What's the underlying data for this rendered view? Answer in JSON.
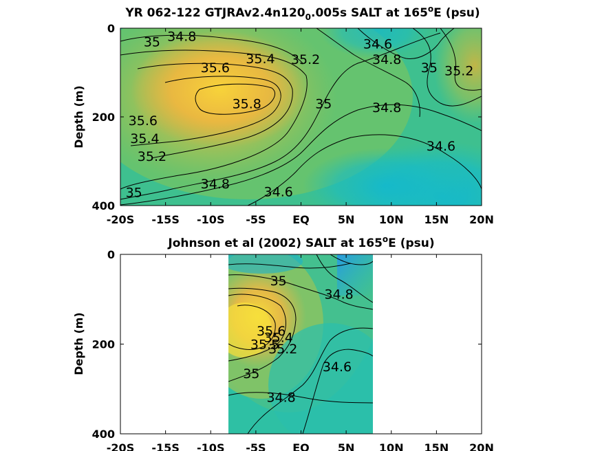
{
  "chart_data": [
    {
      "type": "heatmap",
      "title_pre": "YR 062-122 GTJRAv2.4n120",
      "title_sub": "0",
      "title_post": ".005s SALT at 165",
      "title_sup": "o",
      "title_end": "E (psu)",
      "ylabel": "Depth (m)",
      "xlim": [
        -20,
        20
      ],
      "ylim": [
        0,
        400
      ],
      "x_ticks": [
        -20,
        -15,
        -10,
        -5,
        0,
        5,
        10,
        15,
        20
      ],
      "x_tick_labels": [
        "-20S",
        "-15S",
        "-10S",
        "-5S",
        "EQ",
        "5N",
        "10N",
        "15N",
        "20N"
      ],
      "y_ticks": [
        0,
        200,
        400
      ],
      "y_tick_labels": [
        "0",
        "200",
        "400"
      ],
      "data_extent_lat": [
        -20,
        20
      ],
      "contour_labels": [
        {
          "text": "35",
          "lat": -16.5,
          "depth": 30
        },
        {
          "text": "34.8",
          "lat": -13.2,
          "depth": 18
        },
        {
          "text": "35.4",
          "lat": -4.5,
          "depth": 68
        },
        {
          "text": "35.2",
          "lat": 0.5,
          "depth": 70
        },
        {
          "text": "35.6",
          "lat": -9.5,
          "depth": 88
        },
        {
          "text": "35.8",
          "lat": -6.0,
          "depth": 170
        },
        {
          "text": "35.6",
          "lat": -17.5,
          "depth": 208
        },
        {
          "text": "35.4",
          "lat": -17.3,
          "depth": 248
        },
        {
          "text": "35.2",
          "lat": -16.5,
          "depth": 288
        },
        {
          "text": "35",
          "lat": -18.5,
          "depth": 370
        },
        {
          "text": "34.8",
          "lat": -9.5,
          "depth": 350
        },
        {
          "text": "34.6",
          "lat": -2.5,
          "depth": 368
        },
        {
          "text": "35",
          "lat": 2.5,
          "depth": 170
        },
        {
          "text": "34.8",
          "lat": 9.5,
          "depth": 178
        },
        {
          "text": "34.6",
          "lat": 15.5,
          "depth": 265
        },
        {
          "text": "34.6",
          "lat": 8.5,
          "depth": 35
        },
        {
          "text": "34.8",
          "lat": 9.5,
          "depth": 70
        },
        {
          "text": "35",
          "lat": 14.2,
          "depth": 88
        },
        {
          "text": "35.2",
          "lat": 17.5,
          "depth": 95
        }
      ]
    },
    {
      "type": "heatmap",
      "title_pre": "Johnson et al (2002) SALT at 165",
      "title_sup": "o",
      "title_end": "E (psu)",
      "ylabel": "Depth (m)",
      "xlim": [
        -20,
        20
      ],
      "ylim": [
        0,
        400
      ],
      "x_ticks": [
        -20,
        -15,
        -10,
        -5,
        0,
        5,
        10,
        15,
        20
      ],
      "x_tick_labels": [
        "-20S",
        "-15S",
        "-10S",
        "-5S",
        "EQ",
        "5N",
        "10N",
        "15N",
        "20N"
      ],
      "y_ticks": [
        0,
        200,
        400
      ],
      "y_tick_labels": [
        "0",
        "200",
        "400"
      ],
      "data_extent_lat": [
        -8,
        8
      ],
      "contour_labels": [
        {
          "text": "35",
          "lat": -2.5,
          "depth": 58
        },
        {
          "text": "34.8",
          "lat": 4.2,
          "depth": 88
        },
        {
          "text": "35.6",
          "lat": -3.3,
          "depth": 170
        },
        {
          "text": "35.4",
          "lat": -2.5,
          "depth": 185
        },
        {
          "text": "35.2",
          "lat": -2.0,
          "depth": 210
        },
        {
          "text": "35.5",
          "lat": -4.0,
          "depth": 200
        },
        {
          "text": "34.6",
          "lat": 4.0,
          "depth": 250
        },
        {
          "text": "35",
          "lat": -5.5,
          "depth": 265
        },
        {
          "text": "34.8",
          "lat": -2.2,
          "depth": 318
        }
      ]
    }
  ]
}
